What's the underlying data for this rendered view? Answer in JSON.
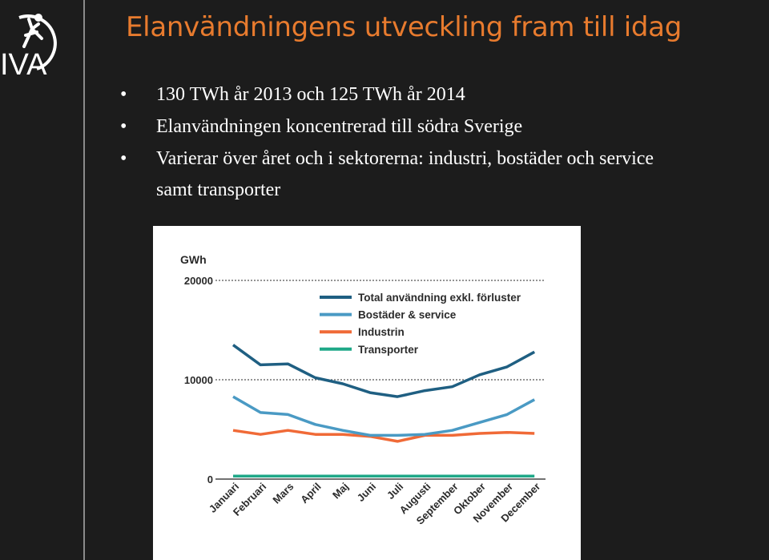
{
  "logo": {
    "text": "IVA"
  },
  "title": "Elanvändningens utveckling fram till idag",
  "bullets": [
    {
      "marker": "•",
      "text": "130 TWh år 2013 och 125 TWh år 2014"
    },
    {
      "marker": "•",
      "text": "Elanvändningen  koncentrerad till södra Sverige"
    },
    {
      "marker": "•",
      "text": "Varierar över året och i sektorerna: industri, bostäder och service",
      "continuation": "samt transporter"
    }
  ],
  "chart_data": {
    "type": "line",
    "ylabel": "GWh",
    "yticks": [
      "20000",
      "10000",
      "0"
    ],
    "ylim": [
      0,
      20000
    ],
    "grid": "dotted horizontal lines at 10000 and 20000",
    "legend_position": "top-center",
    "categories": [
      "Januari",
      "Februari",
      "Mars",
      "April",
      "Maj",
      "Juni",
      "Juli",
      "Augusti",
      "September",
      "Oktober",
      "November",
      "December"
    ],
    "series": [
      {
        "name": "Total användning exkl. förluster",
        "color": "#1f5f82",
        "values": [
          13500,
          11500,
          11600,
          10200,
          9600,
          8700,
          8300,
          8900,
          9300,
          10500,
          11300,
          12800
        ]
      },
      {
        "name": "Bostäder & service",
        "color": "#4a9ac4",
        "values": [
          8300,
          6700,
          6500,
          5500,
          4900,
          4400,
          4400,
          4500,
          4900,
          5700,
          6500,
          8000
        ]
      },
      {
        "name": "Industrin",
        "color": "#f06a37",
        "values": [
          4900,
          4500,
          4900,
          4500,
          4500,
          4300,
          3800,
          4400,
          4400,
          4600,
          4700,
          4600
        ]
      },
      {
        "name": "Transporter",
        "color": "#1fa888",
        "values": [
          300,
          300,
          300,
          300,
          300,
          300,
          300,
          300,
          300,
          300,
          300,
          300
        ]
      }
    ]
  }
}
